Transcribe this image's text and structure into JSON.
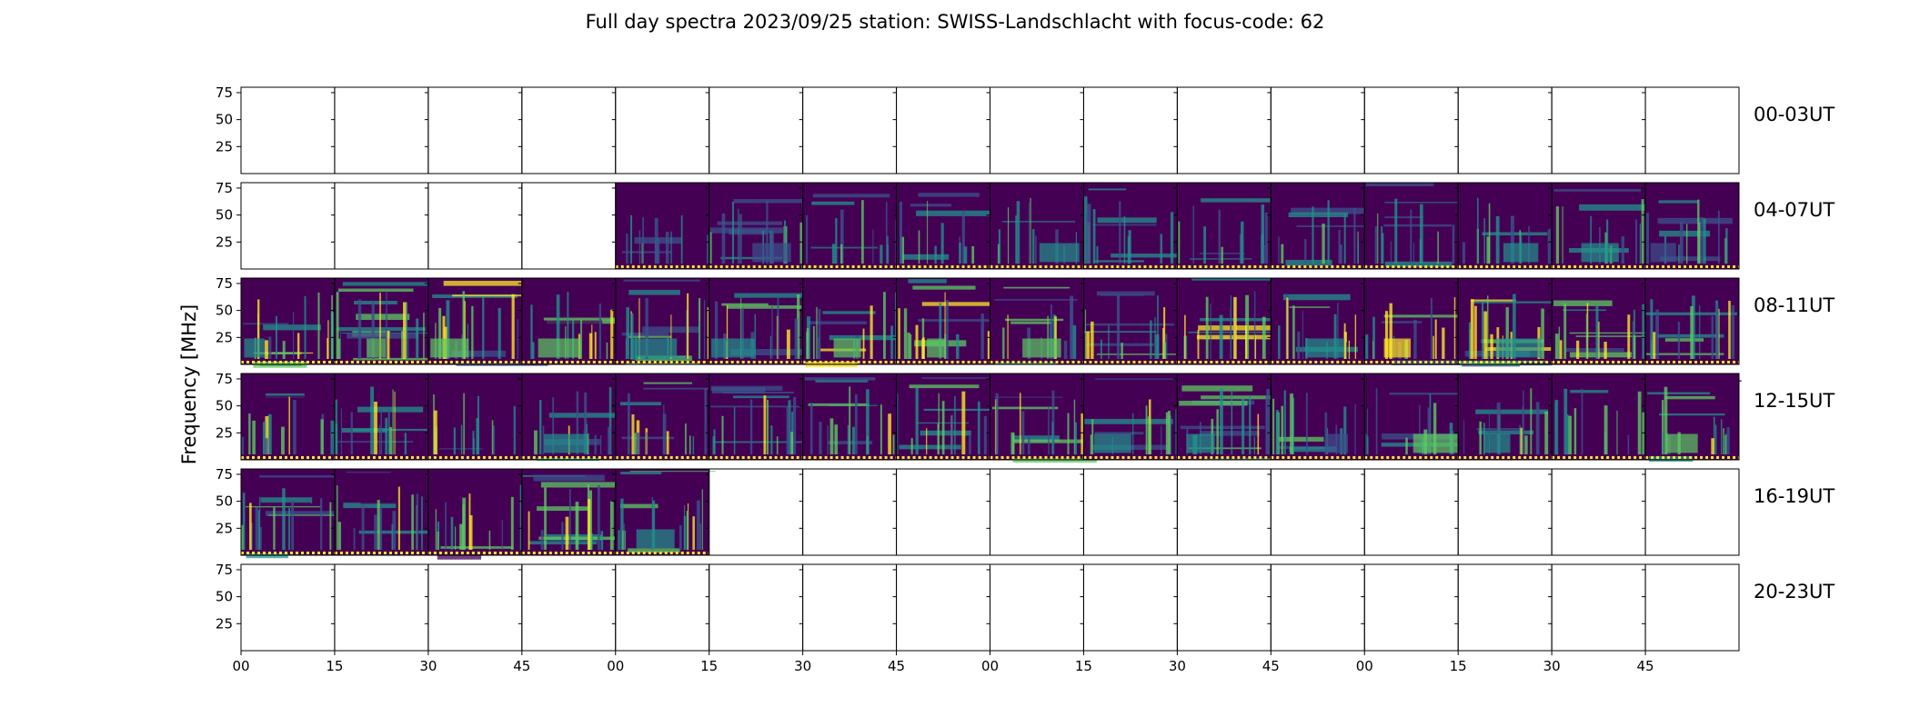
{
  "chart_data": {
    "type": "heatmap",
    "title": "Full day spectra 2023/09/25 station: SWISS-Landschlacht with focus-code: 62",
    "ylabel": "Frequency [MHz]",
    "xlabel": "",
    "ylim": [
      0,
      80
    ],
    "yticks": [
      25,
      50,
      75
    ],
    "xtick_labels": [
      "00",
      "15",
      "30",
      "45",
      "00",
      "15",
      "30",
      "45",
      "00",
      "15",
      "30",
      "45",
      "00",
      "15",
      "30",
      "45"
    ],
    "panels_per_row": 16,
    "panel_minutes": 15,
    "colormap": [
      "#440154",
      "#3b528b",
      "#21918c",
      "#5ec962",
      "#fde725"
    ],
    "marker_color": "#fde725",
    "rows": [
      {
        "label": "00-03UT",
        "data_panels": [],
        "intensity": 0.0
      },
      {
        "label": "04-07UT",
        "data_panels": [
          4,
          5,
          6,
          7,
          8,
          9,
          10,
          11,
          12,
          13,
          14,
          15
        ],
        "intensity": 0.35
      },
      {
        "label": "08-11UT",
        "data_panels": [
          0,
          1,
          2,
          3,
          4,
          5,
          6,
          7,
          8,
          9,
          10,
          11,
          12,
          13,
          14,
          15
        ],
        "intensity": 0.55
      },
      {
        "label": "12-15UT",
        "data_panels": [
          0,
          1,
          2,
          3,
          4,
          5,
          6,
          7,
          8,
          9,
          10,
          11,
          12,
          13,
          14,
          15
        ],
        "intensity": 0.45
      },
      {
        "label": "16-19UT",
        "data_panels": [
          0,
          1,
          2,
          3,
          4
        ],
        "intensity": 0.5
      },
      {
        "label": "20-23UT",
        "data_panels": [],
        "intensity": 0.0
      }
    ]
  }
}
